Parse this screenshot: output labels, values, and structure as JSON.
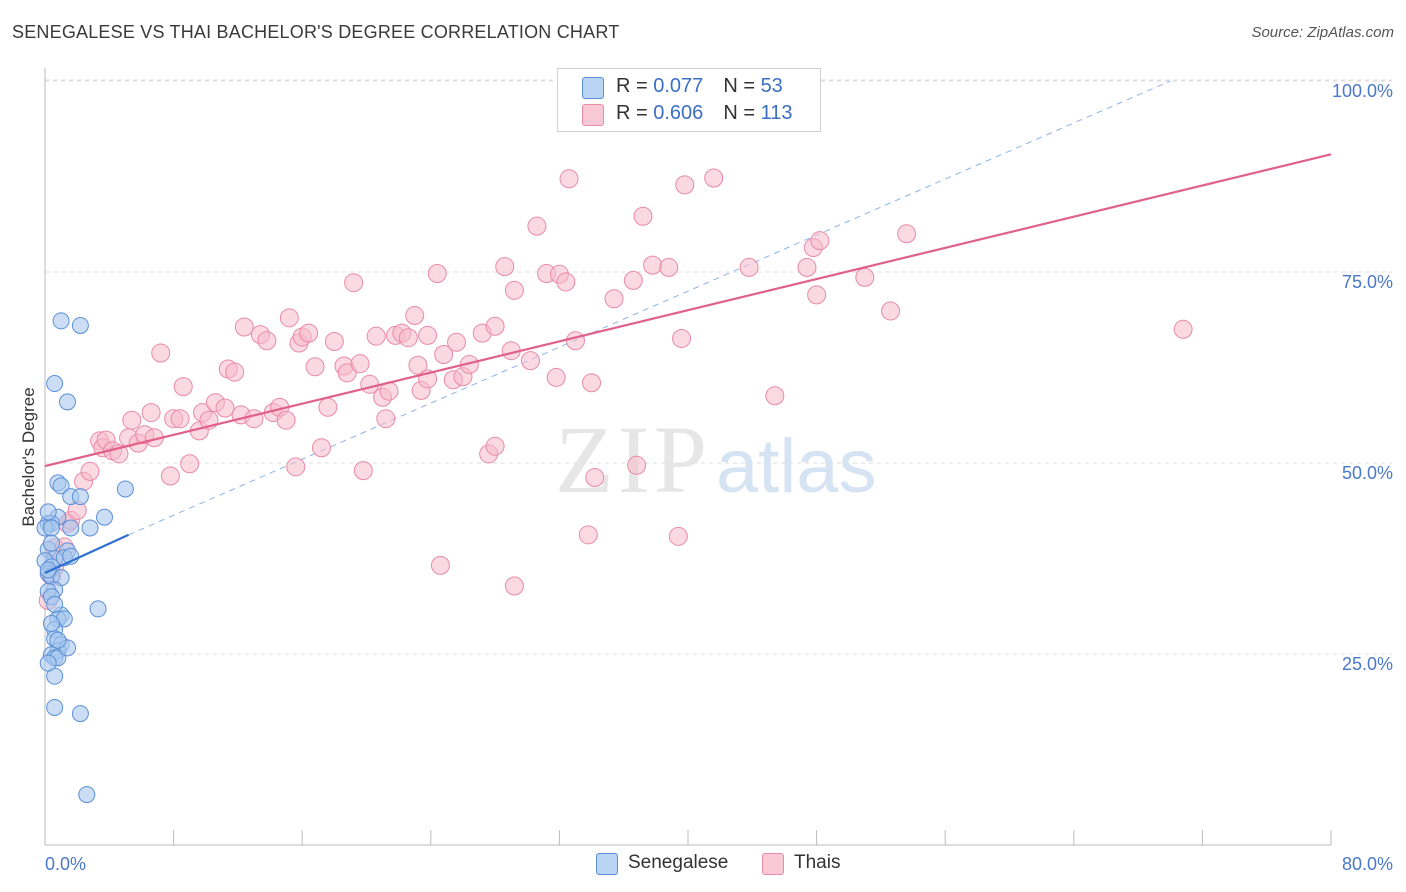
{
  "title": "SENEGALESE VS THAI BACHELOR'S DEGREE CORRELATION CHART",
  "source": "Source: ZipAtlas.com",
  "watermark": {
    "zip": "ZIP",
    "atlas": "atlas"
  },
  "legend": {
    "senegalese": {
      "r_label": "R = ",
      "r_value": "0.077",
      "n_label": "N = ",
      "n_value": "53"
    },
    "thais": {
      "r_label": "R = ",
      "r_value": "0.606",
      "n_label": "N = ",
      "n_value": "113"
    }
  },
  "bottom_legend": {
    "senegalese": "Senegalese",
    "thais": "Thais"
  },
  "colors": {
    "senegalese_fill": "#a9c8ef",
    "senegalese_stroke": "#5b8fd6",
    "senegalese_line": "#2e6fd0",
    "thais_fill": "#f5b9cc",
    "thais_stroke": "#e98aa8",
    "thais_line": "#e0608a",
    "grid": "#dddddd",
    "axis_text": "#4a78c8"
  },
  "chart_data": {
    "type": "scatter",
    "title": "SENEGALESE VS THAI BACHELOR'S DEGREE CORRELATION CHART",
    "xlabel": "",
    "ylabel": "Bachelor's Degree",
    "xlim": [
      0,
      80
    ],
    "ylim": [
      0,
      102
    ],
    "x_tick_labels": [
      "0.0%",
      "80.0%"
    ],
    "y_ticks": [
      25,
      50,
      75,
      100
    ],
    "y_tick_labels": [
      "25.0%",
      "50.0%",
      "75.0%",
      "100.0%"
    ],
    "series": [
      {
        "name": "Senegalese",
        "r": 0.077,
        "n": 53,
        "trend": {
          "x": [
            0,
            5.2
          ],
          "y": [
            35.6,
            40.6
          ]
        },
        "points": [
          [
            1.0,
            68.6
          ],
          [
            2.2,
            68.0
          ],
          [
            0.6,
            60.4
          ],
          [
            1.4,
            58.0
          ],
          [
            5.0,
            46.6
          ],
          [
            0.8,
            47.4
          ],
          [
            1.0,
            47.0
          ],
          [
            1.6,
            45.6
          ],
          [
            2.2,
            45.6
          ],
          [
            0.8,
            42.9
          ],
          [
            0.2,
            42.1
          ],
          [
            0.4,
            42.1
          ],
          [
            3.7,
            42.9
          ],
          [
            0.0,
            41.5
          ],
          [
            0.4,
            41.5
          ],
          [
            1.6,
            41.5
          ],
          [
            2.8,
            41.5
          ],
          [
            1.4,
            38.5
          ],
          [
            0.2,
            38.7
          ],
          [
            0.6,
            37.5
          ],
          [
            1.2,
            37.6
          ],
          [
            1.6,
            37.8
          ],
          [
            0.0,
            37.2
          ],
          [
            0.4,
            36.4
          ],
          [
            0.2,
            35.5
          ],
          [
            0.4,
            35.2
          ],
          [
            1.0,
            35.0
          ],
          [
            0.6,
            33.4
          ],
          [
            0.2,
            33.2
          ],
          [
            0.4,
            32.5
          ],
          [
            3.3,
            30.9
          ],
          [
            1.0,
            30.1
          ],
          [
            0.8,
            29.6
          ],
          [
            1.2,
            29.6
          ],
          [
            0.6,
            28.2
          ],
          [
            0.6,
            27.0
          ],
          [
            1.0,
            26.2
          ],
          [
            0.8,
            25.4
          ],
          [
            0.4,
            24.9
          ],
          [
            0.6,
            24.5
          ],
          [
            0.8,
            24.5
          ],
          [
            1.4,
            25.8
          ],
          [
            0.6,
            22.1
          ],
          [
            0.6,
            18.0
          ],
          [
            2.2,
            17.2
          ],
          [
            2.6,
            6.6
          ],
          [
            0.2,
            43.6
          ],
          [
            0.4,
            39.5
          ],
          [
            0.2,
            36.0
          ],
          [
            0.6,
            31.5
          ],
          [
            0.4,
            29.0
          ],
          [
            0.8,
            26.8
          ],
          [
            0.2,
            23.8
          ]
        ]
      },
      {
        "name": "Thais",
        "r": 0.606,
        "n": 113,
        "trend": {
          "x": [
            0,
            80
          ],
          "y": [
            49.6,
            90.4
          ]
        },
        "points": [
          [
            0.2,
            32.0
          ],
          [
            0.4,
            35.2
          ],
          [
            0.6,
            36.4
          ],
          [
            0.6,
            38.9
          ],
          [
            1.2,
            39.0
          ],
          [
            1.4,
            42.1
          ],
          [
            1.6,
            42.5
          ],
          [
            2.0,
            43.8
          ],
          [
            2.4,
            47.6
          ],
          [
            2.8,
            48.9
          ],
          [
            3.4,
            52.9
          ],
          [
            3.6,
            52.0
          ],
          [
            3.8,
            53.0
          ],
          [
            4.2,
            51.6
          ],
          [
            4.6,
            51.2
          ],
          [
            5.2,
            53.3
          ],
          [
            5.4,
            55.6
          ],
          [
            5.8,
            52.6
          ],
          [
            6.2,
            53.7
          ],
          [
            6.6,
            56.6
          ],
          [
            6.8,
            53.3
          ],
          [
            7.2,
            64.4
          ],
          [
            7.8,
            48.3
          ],
          [
            8.0,
            55.8
          ],
          [
            8.4,
            55.8
          ],
          [
            8.6,
            60.0
          ],
          [
            9.0,
            49.9
          ],
          [
            9.6,
            54.2
          ],
          [
            9.8,
            56.6
          ],
          [
            10.2,
            55.6
          ],
          [
            10.6,
            57.9
          ],
          [
            11.2,
            57.2
          ],
          [
            11.4,
            62.3
          ],
          [
            11.8,
            61.9
          ],
          [
            12.2,
            56.3
          ],
          [
            12.4,
            67.8
          ],
          [
            13.0,
            55.8
          ],
          [
            13.4,
            66.8
          ],
          [
            13.8,
            66.0
          ],
          [
            14.2,
            56.6
          ],
          [
            14.6,
            57.3
          ],
          [
            15.0,
            55.6
          ],
          [
            15.2,
            69.0
          ],
          [
            15.6,
            49.5
          ],
          [
            15.8,
            65.7
          ],
          [
            16.0,
            66.5
          ],
          [
            16.4,
            67.0
          ],
          [
            16.8,
            62.6
          ],
          [
            17.2,
            52.0
          ],
          [
            17.6,
            57.3
          ],
          [
            18.0,
            65.9
          ],
          [
            18.6,
            62.7
          ],
          [
            18.8,
            61.8
          ],
          [
            19.2,
            73.6
          ],
          [
            19.6,
            63.0
          ],
          [
            19.8,
            49.0
          ],
          [
            20.2,
            60.3
          ],
          [
            20.6,
            66.6
          ],
          [
            21.0,
            58.6
          ],
          [
            21.2,
            55.8
          ],
          [
            21.4,
            59.4
          ],
          [
            21.8,
            66.7
          ],
          [
            22.2,
            67.0
          ],
          [
            22.6,
            66.4
          ],
          [
            23.0,
            69.3
          ],
          [
            23.2,
            62.8
          ],
          [
            23.4,
            59.5
          ],
          [
            23.8,
            66.7
          ],
          [
            23.8,
            61.0
          ],
          [
            24.4,
            74.8
          ],
          [
            24.6,
            36.6
          ],
          [
            24.8,
            64.2
          ],
          [
            25.4,
            60.9
          ],
          [
            25.6,
            65.8
          ],
          [
            26.0,
            61.3
          ],
          [
            26.4,
            62.9
          ],
          [
            27.2,
            67.0
          ],
          [
            27.6,
            51.2
          ],
          [
            28.0,
            52.2
          ],
          [
            28.0,
            67.9
          ],
          [
            28.6,
            75.7
          ],
          [
            29.0,
            64.7
          ],
          [
            29.2,
            72.6
          ],
          [
            29.2,
            33.9
          ],
          [
            30.2,
            63.4
          ],
          [
            30.6,
            81.0
          ],
          [
            31.2,
            74.8
          ],
          [
            31.8,
            61.2
          ],
          [
            32.0,
            74.7
          ],
          [
            32.4,
            73.7
          ],
          [
            32.6,
            87.2
          ],
          [
            33.0,
            66.0
          ],
          [
            33.8,
            40.6
          ],
          [
            34.0,
            60.5
          ],
          [
            34.2,
            48.1
          ],
          [
            35.4,
            71.5
          ],
          [
            36.6,
            73.9
          ],
          [
            36.8,
            49.7
          ],
          [
            37.2,
            82.3
          ],
          [
            37.8,
            75.9
          ],
          [
            38.8,
            75.6
          ],
          [
            39.4,
            40.4
          ],
          [
            39.6,
            66.3
          ],
          [
            39.8,
            86.4
          ],
          [
            41.6,
            87.3
          ],
          [
            43.8,
            75.6
          ],
          [
            45.4,
            58.8
          ],
          [
            47.4,
            75.6
          ],
          [
            47.8,
            78.2
          ],
          [
            48.2,
            79.1
          ],
          [
            48.0,
            72.0
          ],
          [
            51.0,
            74.3
          ],
          [
            52.6,
            69.9
          ],
          [
            53.6,
            80.0
          ],
          [
            70.8,
            67.5
          ]
        ]
      }
    ],
    "reference_line": {
      "style": "dashed",
      "x": [
        5.2,
        70.0
      ],
      "y": [
        40.6,
        100.0
      ]
    }
  }
}
